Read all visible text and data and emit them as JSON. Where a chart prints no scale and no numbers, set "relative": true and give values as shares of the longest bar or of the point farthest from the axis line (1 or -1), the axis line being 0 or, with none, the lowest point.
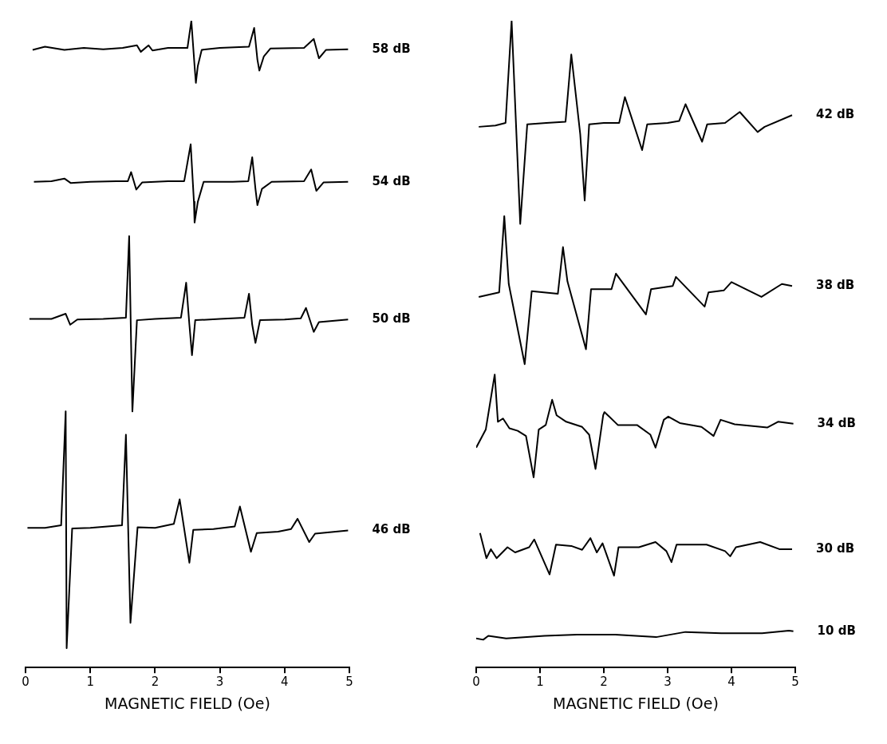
{
  "chart_data": [
    {
      "type": "line",
      "relative": true,
      "xlabel": "MAGNETIC FIELD (Oe)",
      "xlim": [
        0,
        5
      ],
      "xticks": [
        0,
        1,
        2,
        3,
        4,
        5
      ],
      "tick_labels": "x",
      "marker": "none",
      "series": [
        {
          "name": "58 dB",
          "color": "#000000",
          "x": [
            0.11,
            0.3,
            0.6,
            0.9,
            1.2,
            1.5,
            1.72,
            1.78,
            1.9,
            1.96,
            2.2,
            2.5,
            2.56,
            2.61,
            2.63,
            2.66,
            2.72,
            3.0,
            3.45,
            3.53,
            3.58,
            3.61,
            3.68,
            3.78,
            4.3,
            4.45,
            4.53,
            4.64,
            4.98
          ],
          "values": [
            0.955,
            0.96,
            0.955,
            0.958,
            0.956,
            0.958,
            0.962,
            0.952,
            0.962,
            0.954,
            0.958,
            0.958,
            1.0,
            0.93,
            0.904,
            0.93,
            0.955,
            0.958,
            0.96,
            0.989,
            0.94,
            0.923,
            0.945,
            0.957,
            0.958,
            0.972,
            0.942,
            0.955,
            0.956
          ]
        },
        {
          "name": "54 dB",
          "color": "#000000",
          "x": [
            0.13,
            0.4,
            0.6,
            0.7,
            1.0,
            1.4,
            1.58,
            1.63,
            1.71,
            1.8,
            2.2,
            2.45,
            2.55,
            2.6,
            2.61,
            2.66,
            2.75,
            3.2,
            3.44,
            3.5,
            3.55,
            3.58,
            3.65,
            3.8,
            4.3,
            4.41,
            4.49,
            4.6,
            4.98
          ],
          "values": [
            0.751,
            0.752,
            0.756,
            0.749,
            0.751,
            0.752,
            0.752,
            0.766,
            0.739,
            0.75,
            0.752,
            0.752,
            0.809,
            0.72,
            0.688,
            0.72,
            0.751,
            0.751,
            0.752,
            0.789,
            0.74,
            0.715,
            0.74,
            0.751,
            0.752,
            0.77,
            0.737,
            0.75,
            0.751
          ]
        },
        {
          "name": "50 dB",
          "color": "#000000",
          "x": [
            0.06,
            0.4,
            0.62,
            0.69,
            0.8,
            1.2,
            1.55,
            1.6,
            1.63,
            1.65,
            1.72,
            2.0,
            2.4,
            2.48,
            2.53,
            2.57,
            2.62,
            3.0,
            3.38,
            3.45,
            3.5,
            3.55,
            3.62,
            4.0,
            4.25,
            4.33,
            4.45,
            4.53,
            4.98
          ],
          "values": [
            0.539,
            0.539,
            0.547,
            0.53,
            0.538,
            0.539,
            0.541,
            0.667,
            0.5,
            0.396,
            0.537,
            0.539,
            0.541,
            0.595,
            0.53,
            0.483,
            0.537,
            0.539,
            0.541,
            0.578,
            0.53,
            0.502,
            0.537,
            0.538,
            0.54,
            0.556,
            0.519,
            0.534,
            0.538
          ]
        },
        {
          "name": "46 dB",
          "color": "#000000",
          "x": [
            0.03,
            0.3,
            0.55,
            0.62,
            0.635,
            0.72,
            1.0,
            1.49,
            1.55,
            1.62,
            1.73,
            2.0,
            2.29,
            2.38,
            2.53,
            2.59,
            2.9,
            3.23,
            3.31,
            3.48,
            3.57,
            3.9,
            4.1,
            4.2,
            4.38,
            4.47,
            4.98
          ],
          "values": [
            0.216,
            0.216,
            0.22,
            0.396,
            0.03,
            0.215,
            0.216,
            0.22,
            0.36,
            0.069,
            0.217,
            0.216,
            0.222,
            0.26,
            0.162,
            0.213,
            0.214,
            0.218,
            0.249,
            0.179,
            0.208,
            0.21,
            0.214,
            0.23,
            0.194,
            0.207,
            0.212
          ]
        }
      ]
    },
    {
      "type": "line",
      "relative": true,
      "xlabel": "MAGNETIC FIELD (Oe)",
      "xlim": [
        0,
        5
      ],
      "xticks": [
        0,
        1,
        2,
        3,
        4,
        5
      ],
      "tick_labels": "x",
      "marker": "none",
      "series": [
        {
          "name": "42 dB",
          "color": "#000000",
          "x": [
            0.04,
            0.3,
            0.46,
            0.555,
            0.69,
            0.8,
            1.1,
            1.4,
            1.49,
            1.63,
            1.7,
            1.77,
            2.0,
            2.24,
            2.33,
            2.6,
            2.68,
            3.0,
            3.18,
            3.28,
            3.54,
            3.62,
            3.9,
            4.13,
            4.41,
            4.52,
            4.95
          ],
          "values": [
            0.836,
            0.838,
            0.842,
            1.0,
            0.686,
            0.84,
            0.842,
            0.844,
            0.948,
            0.825,
            0.722,
            0.84,
            0.842,
            0.842,
            0.882,
            0.8,
            0.84,
            0.842,
            0.845,
            0.871,
            0.813,
            0.84,
            0.842,
            0.859,
            0.828,
            0.836,
            0.854
          ]
        },
        {
          "name": "38 dB",
          "color": "#000000",
          "x": [
            0.04,
            0.36,
            0.44,
            0.51,
            0.76,
            0.87,
            1.28,
            1.36,
            1.43,
            1.72,
            1.8,
            2.12,
            2.19,
            2.66,
            2.74,
            3.08,
            3.13,
            3.58,
            3.64,
            3.88,
            4.0,
            4.47,
            4.79,
            4.95
          ],
          "values": [
            0.573,
            0.58,
            0.698,
            0.593,
            0.469,
            0.582,
            0.578,
            0.65,
            0.597,
            0.492,
            0.585,
            0.585,
            0.609,
            0.546,
            0.585,
            0.59,
            0.604,
            0.558,
            0.58,
            0.583,
            0.596,
            0.573,
            0.593,
            0.59
          ]
        },
        {
          "name": "34 dB",
          "color": "#000000",
          "x": [
            0.0,
            0.15,
            0.29,
            0.34,
            0.42,
            0.52,
            0.65,
            0.78,
            0.9,
            0.98,
            1.09,
            1.19,
            1.26,
            1.41,
            1.66,
            1.77,
            1.87,
            1.99,
            2.01,
            2.22,
            2.52,
            2.73,
            2.81,
            2.94,
            3.01,
            3.19,
            3.53,
            3.72,
            3.83,
            4.05,
            4.56,
            4.73,
            4.97
          ],
          "values": [
            0.34,
            0.368,
            0.453,
            0.38,
            0.385,
            0.37,
            0.366,
            0.358,
            0.294,
            0.368,
            0.375,
            0.414,
            0.39,
            0.38,
            0.372,
            0.36,
            0.307,
            0.39,
            0.395,
            0.375,
            0.375,
            0.36,
            0.34,
            0.383,
            0.388,
            0.378,
            0.372,
            0.358,
            0.383,
            0.376,
            0.371,
            0.38,
            0.377
          ]
        },
        {
          "name": "30 dB",
          "color": "#000000",
          "x": [
            0.06,
            0.16,
            0.23,
            0.32,
            0.49,
            0.61,
            0.83,
            0.91,
            1.15,
            1.25,
            1.49,
            1.66,
            1.79,
            1.89,
            1.98,
            2.16,
            2.23,
            2.55,
            2.81,
            2.98,
            3.06,
            3.14,
            3.61,
            3.9,
            3.98,
            4.07,
            4.45,
            4.75,
            4.95
          ],
          "values": [
            0.208,
            0.169,
            0.183,
            0.169,
            0.186,
            0.178,
            0.186,
            0.198,
            0.144,
            0.19,
            0.188,
            0.182,
            0.2,
            0.178,
            0.192,
            0.142,
            0.186,
            0.186,
            0.194,
            0.18,
            0.163,
            0.19,
            0.19,
            0.18,
            0.172,
            0.186,
            0.194,
            0.183,
            0.183
          ]
        },
        {
          "name": "10 dB",
          "color": "#000000",
          "x": [
            0.0,
            0.11,
            0.19,
            0.47,
            1.07,
            1.58,
            2.18,
            2.82,
            3.28,
            3.84,
            4.48,
            4.9,
            4.97
          ],
          "values": [
            0.045,
            0.043,
            0.049,
            0.045,
            0.049,
            0.051,
            0.051,
            0.047,
            0.055,
            0.053,
            0.053,
            0.057,
            0.056
          ]
        }
      ]
    }
  ]
}
